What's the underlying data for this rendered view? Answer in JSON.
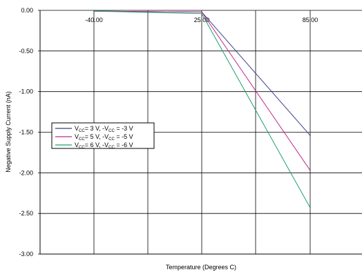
{
  "chart_data": {
    "type": "line",
    "title": "",
    "xlabel": "Temperature (Degrees C)",
    "ylabel": "Negative Supply Current (nA)",
    "x": [
      -40.0,
      25.0,
      85.0
    ],
    "x_tick_labels": [
      "-40.00",
      "25.00",
      "85.00"
    ],
    "y_tick_labels": [
      "0.00",
      "-0.50",
      "-1.00",
      "-1.50",
      "-2.00",
      "-2.50",
      "-3.00"
    ],
    "ylim": [
      -3.0,
      0.0
    ],
    "grid": true,
    "legend_position": "left",
    "series": [
      {
        "name": "V_CC = 3 V, -V_CC = -3 V",
        "label_parts": [
          "V",
          "CC",
          "= 3 V, -V",
          "CC",
          " = -3 V"
        ],
        "color": "#3c3c8c",
        "values": [
          -0.01,
          -0.02,
          -1.54
        ]
      },
      {
        "name": "V_CC = 5 V, -V_CC = -5 V",
        "label_parts": [
          "V",
          "CC",
          "= 5 V, -V",
          "CC",
          " = -5 V"
        ],
        "color": "#c0288c",
        "values": [
          -0.01,
          -0.02,
          -1.97
        ]
      },
      {
        "name": "V_CC = 6 V, -V_CC = -6 V",
        "label_parts": [
          "V",
          "CC",
          "= 6 V, -V",
          "CC",
          " = -6 V"
        ],
        "color": "#1e9e6e",
        "values": [
          -0.01,
          -0.04,
          -2.43
        ]
      }
    ]
  }
}
